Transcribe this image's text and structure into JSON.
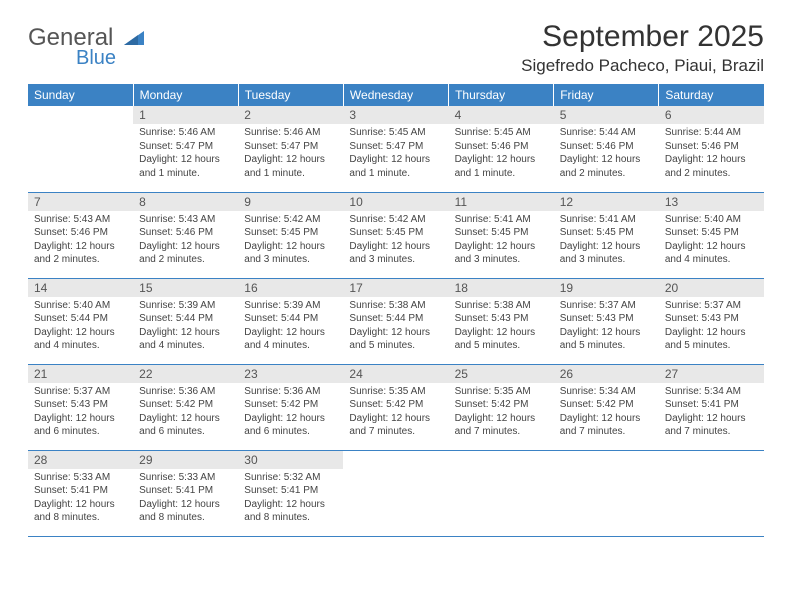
{
  "logo": {
    "word1": "General",
    "word2": "Blue"
  },
  "title": "September 2025",
  "location": "Sigefredo Pacheco, Piaui, Brazil",
  "colors": {
    "header_bg": "#3b82c4",
    "header_text": "#ffffff",
    "daynum_bg": "#e8e8e8",
    "daynum_text": "#555555",
    "body_text": "#444444",
    "row_border": "#3b82c4",
    "page_bg": "#ffffff",
    "logo_gray": "#555555",
    "logo_blue": "#3b82c4"
  },
  "day_headers": [
    "Sunday",
    "Monday",
    "Tuesday",
    "Wednesday",
    "Thursday",
    "Friday",
    "Saturday"
  ],
  "weeks": [
    [
      null,
      {
        "n": "1",
        "sr": "Sunrise: 5:46 AM",
        "ss": "Sunset: 5:47 PM",
        "dl": "Daylight: 12 hours and 1 minute."
      },
      {
        "n": "2",
        "sr": "Sunrise: 5:46 AM",
        "ss": "Sunset: 5:47 PM",
        "dl": "Daylight: 12 hours and 1 minute."
      },
      {
        "n": "3",
        "sr": "Sunrise: 5:45 AM",
        "ss": "Sunset: 5:47 PM",
        "dl": "Daylight: 12 hours and 1 minute."
      },
      {
        "n": "4",
        "sr": "Sunrise: 5:45 AM",
        "ss": "Sunset: 5:46 PM",
        "dl": "Daylight: 12 hours and 1 minute."
      },
      {
        "n": "5",
        "sr": "Sunrise: 5:44 AM",
        "ss": "Sunset: 5:46 PM",
        "dl": "Daylight: 12 hours and 2 minutes."
      },
      {
        "n": "6",
        "sr": "Sunrise: 5:44 AM",
        "ss": "Sunset: 5:46 PM",
        "dl": "Daylight: 12 hours and 2 minutes."
      }
    ],
    [
      {
        "n": "7",
        "sr": "Sunrise: 5:43 AM",
        "ss": "Sunset: 5:46 PM",
        "dl": "Daylight: 12 hours and 2 minutes."
      },
      {
        "n": "8",
        "sr": "Sunrise: 5:43 AM",
        "ss": "Sunset: 5:46 PM",
        "dl": "Daylight: 12 hours and 2 minutes."
      },
      {
        "n": "9",
        "sr": "Sunrise: 5:42 AM",
        "ss": "Sunset: 5:45 PM",
        "dl": "Daylight: 12 hours and 3 minutes."
      },
      {
        "n": "10",
        "sr": "Sunrise: 5:42 AM",
        "ss": "Sunset: 5:45 PM",
        "dl": "Daylight: 12 hours and 3 minutes."
      },
      {
        "n": "11",
        "sr": "Sunrise: 5:41 AM",
        "ss": "Sunset: 5:45 PM",
        "dl": "Daylight: 12 hours and 3 minutes."
      },
      {
        "n": "12",
        "sr": "Sunrise: 5:41 AM",
        "ss": "Sunset: 5:45 PM",
        "dl": "Daylight: 12 hours and 3 minutes."
      },
      {
        "n": "13",
        "sr": "Sunrise: 5:40 AM",
        "ss": "Sunset: 5:45 PM",
        "dl": "Daylight: 12 hours and 4 minutes."
      }
    ],
    [
      {
        "n": "14",
        "sr": "Sunrise: 5:40 AM",
        "ss": "Sunset: 5:44 PM",
        "dl": "Daylight: 12 hours and 4 minutes."
      },
      {
        "n": "15",
        "sr": "Sunrise: 5:39 AM",
        "ss": "Sunset: 5:44 PM",
        "dl": "Daylight: 12 hours and 4 minutes."
      },
      {
        "n": "16",
        "sr": "Sunrise: 5:39 AM",
        "ss": "Sunset: 5:44 PM",
        "dl": "Daylight: 12 hours and 4 minutes."
      },
      {
        "n": "17",
        "sr": "Sunrise: 5:38 AM",
        "ss": "Sunset: 5:44 PM",
        "dl": "Daylight: 12 hours and 5 minutes."
      },
      {
        "n": "18",
        "sr": "Sunrise: 5:38 AM",
        "ss": "Sunset: 5:43 PM",
        "dl": "Daylight: 12 hours and 5 minutes."
      },
      {
        "n": "19",
        "sr": "Sunrise: 5:37 AM",
        "ss": "Sunset: 5:43 PM",
        "dl": "Daylight: 12 hours and 5 minutes."
      },
      {
        "n": "20",
        "sr": "Sunrise: 5:37 AM",
        "ss": "Sunset: 5:43 PM",
        "dl": "Daylight: 12 hours and 5 minutes."
      }
    ],
    [
      {
        "n": "21",
        "sr": "Sunrise: 5:37 AM",
        "ss": "Sunset: 5:43 PM",
        "dl": "Daylight: 12 hours and 6 minutes."
      },
      {
        "n": "22",
        "sr": "Sunrise: 5:36 AM",
        "ss": "Sunset: 5:42 PM",
        "dl": "Daylight: 12 hours and 6 minutes."
      },
      {
        "n": "23",
        "sr": "Sunrise: 5:36 AM",
        "ss": "Sunset: 5:42 PM",
        "dl": "Daylight: 12 hours and 6 minutes."
      },
      {
        "n": "24",
        "sr": "Sunrise: 5:35 AM",
        "ss": "Sunset: 5:42 PM",
        "dl": "Daylight: 12 hours and 7 minutes."
      },
      {
        "n": "25",
        "sr": "Sunrise: 5:35 AM",
        "ss": "Sunset: 5:42 PM",
        "dl": "Daylight: 12 hours and 7 minutes."
      },
      {
        "n": "26",
        "sr": "Sunrise: 5:34 AM",
        "ss": "Sunset: 5:42 PM",
        "dl": "Daylight: 12 hours and 7 minutes."
      },
      {
        "n": "27",
        "sr": "Sunrise: 5:34 AM",
        "ss": "Sunset: 5:41 PM",
        "dl": "Daylight: 12 hours and 7 minutes."
      }
    ],
    [
      {
        "n": "28",
        "sr": "Sunrise: 5:33 AM",
        "ss": "Sunset: 5:41 PM",
        "dl": "Daylight: 12 hours and 8 minutes."
      },
      {
        "n": "29",
        "sr": "Sunrise: 5:33 AM",
        "ss": "Sunset: 5:41 PM",
        "dl": "Daylight: 12 hours and 8 minutes."
      },
      {
        "n": "30",
        "sr": "Sunrise: 5:32 AM",
        "ss": "Sunset: 5:41 PM",
        "dl": "Daylight: 12 hours and 8 minutes."
      },
      null,
      null,
      null,
      null
    ]
  ]
}
